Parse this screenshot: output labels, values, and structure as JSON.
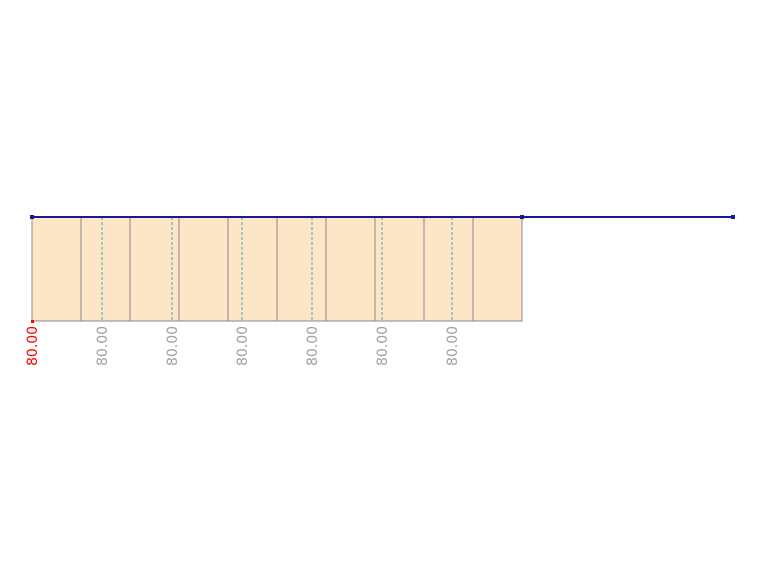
{
  "diagram": {
    "colors": {
      "panel_fill": "#fce6c6",
      "panel_stroke": "#8a8a8a",
      "beam": "#1a1a8c",
      "dashed": "#4aa8b8",
      "label_first": "#ff0000",
      "label": "#a0a0a0"
    },
    "panel_count": 10,
    "labels": [
      "80.00",
      "80.00",
      "80.00",
      "80.00",
      "80.00",
      "80.00",
      "80.00"
    ]
  }
}
